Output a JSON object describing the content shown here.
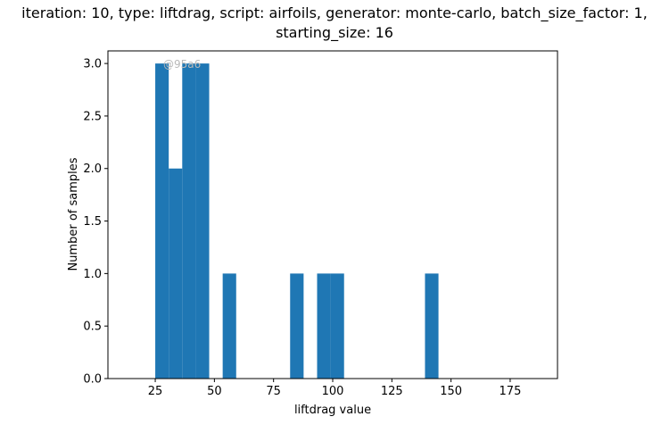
{
  "chart_data": {
    "type": "bar",
    "title_lines": [
      "iteration: 10, type: liftdrag, script: airfoils, generator: monte-carlo, batch_size_factor: 1,",
      "starting_size: 16"
    ],
    "xlabel": "liftdrag value",
    "ylabel": "Number of samples",
    "xlim": [
      5,
      195
    ],
    "ylim": [
      0,
      3.12
    ],
    "xticks": [
      25,
      50,
      75,
      100,
      125,
      150,
      175
    ],
    "yticks": [
      0.0,
      0.5,
      1.0,
      1.5,
      2.0,
      2.5,
      3.0
    ],
    "bar_color": "#1f77b4",
    "bars": [
      {
        "x0": 25,
        "x1": 30.7,
        "value": 3
      },
      {
        "x0": 30.7,
        "x1": 36.4,
        "value": 2
      },
      {
        "x0": 36.4,
        "x1": 42.1,
        "value": 3
      },
      {
        "x0": 42.1,
        "x1": 47.8,
        "value": 3
      },
      {
        "x0": 53.5,
        "x1": 59.2,
        "value": 1
      },
      {
        "x0": 82.0,
        "x1": 87.7,
        "value": 1
      },
      {
        "x0": 93.4,
        "x1": 99.1,
        "value": 1
      },
      {
        "x0": 99.1,
        "x1": 104.8,
        "value": 1
      },
      {
        "x0": 139.0,
        "x1": 144.7,
        "value": 1
      }
    ],
    "watermark": "@95a6",
    "grid": false,
    "legend": "none"
  }
}
